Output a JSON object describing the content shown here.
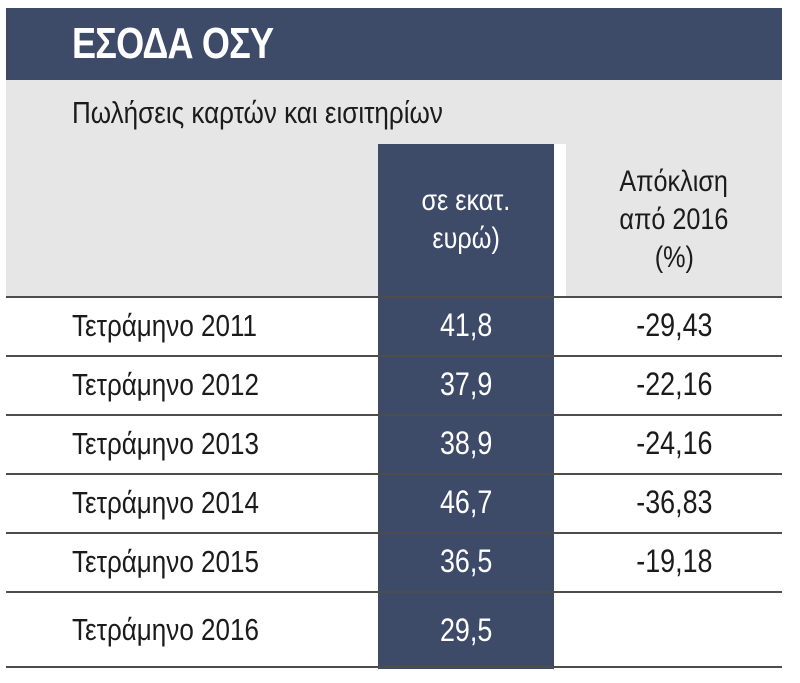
{
  "chart_data": {
    "type": "table",
    "title": "ΕΣΟΔΑ ΟΣΥ",
    "subtitle": "Πωλήσεις καρτών και εισιτηρίων",
    "columns": [
      {
        "label_lines": [
          "σε εκατ.",
          "ευρώ)"
        ]
      },
      {
        "label_lines": [
          "Απόκλιση",
          "από 2016",
          "(%)"
        ]
      }
    ],
    "rows": [
      {
        "label": "Τετράμηνο 2011",
        "value": "41,8",
        "deviation": "-29,43"
      },
      {
        "label": "Τετράμηνο 2012",
        "value": "37,9",
        "deviation": "-22,16"
      },
      {
        "label": "Τετράμηνο 2013",
        "value": "38,9",
        "deviation": "-24,16"
      },
      {
        "label": "Τετράμηνο 2014",
        "value": "46,7",
        "deviation": "-36,83"
      },
      {
        "label": "Τετράμηνο 2015",
        "value": "36,5",
        "deviation": "-19,18"
      },
      {
        "label": "Τετράμηνο 2016",
        "value": "29,5",
        "deviation": ""
      }
    ]
  },
  "colors": {
    "header_navy": "#3d4b69",
    "light_gray": "#e6e6e6",
    "text_dark": "#1b1b1b",
    "text_light": "#ffffff"
  }
}
